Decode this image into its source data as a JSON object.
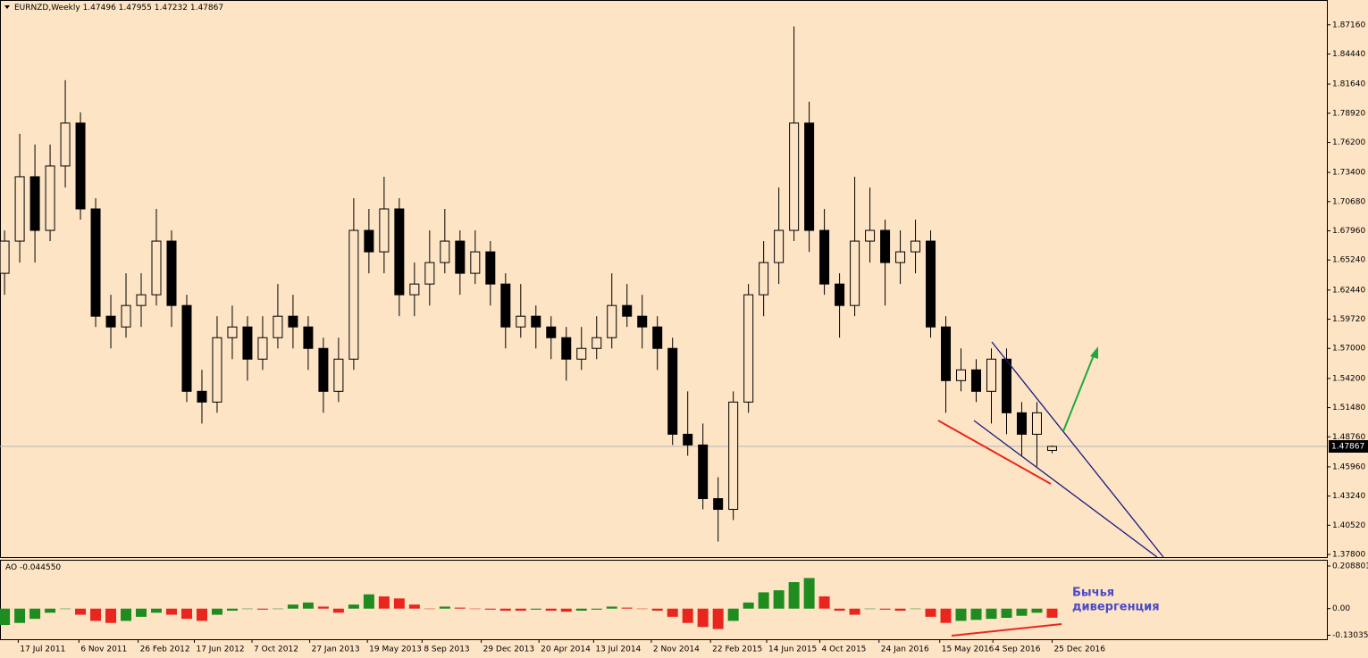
{
  "chart_data": [
    {
      "type": "candlestick",
      "title": "EURNZD,Weekly",
      "ohlc": [
        1.47496,
        1.47955,
        1.47232,
        1.47867
      ],
      "open": [
        1.64,
        1.67,
        1.73,
        1.68,
        1.74,
        1.78,
        1.7,
        1.6,
        1.59,
        1.61,
        1.62,
        1.67,
        1.61,
        1.53,
        1.52,
        1.58,
        1.59,
        1.56,
        1.58,
        1.6,
        1.59,
        1.57,
        1.53,
        1.56,
        1.68,
        1.66,
        1.7,
        1.62,
        1.63,
        1.65,
        1.67,
        1.64,
        1.66,
        1.63,
        1.59,
        1.6,
        1.59,
        1.58,
        1.56,
        1.57,
        1.58,
        1.61,
        1.6,
        1.59,
        1.57,
        1.49,
        1.48,
        1.43,
        1.42,
        1.52,
        1.62,
        1.65,
        1.68,
        1.78,
        1.68,
        1.63,
        1.61,
        1.67,
        1.68,
        1.65,
        1.66,
        1.67,
        1.59,
        1.54,
        1.55,
        1.53,
        1.56,
        1.51,
        1.49,
        1.47496
      ],
      "high": [
        1.68,
        1.77,
        1.76,
        1.76,
        1.82,
        1.79,
        1.71,
        1.62,
        1.64,
        1.64,
        1.7,
        1.68,
        1.62,
        1.55,
        1.6,
        1.61,
        1.6,
        1.6,
        1.63,
        1.62,
        1.6,
        1.58,
        1.58,
        1.71,
        1.7,
        1.73,
        1.71,
        1.65,
        1.68,
        1.7,
        1.68,
        1.68,
        1.67,
        1.64,
        1.63,
        1.61,
        1.6,
        1.59,
        1.59,
        1.6,
        1.64,
        1.63,
        1.62,
        1.6,
        1.58,
        1.53,
        1.5,
        1.45,
        1.53,
        1.63,
        1.67,
        1.72,
        1.87,
        1.8,
        1.7,
        1.64,
        1.73,
        1.72,
        1.69,
        1.68,
        1.69,
        1.68,
        1.6,
        1.57,
        1.56,
        1.57,
        1.57,
        1.52,
        1.52,
        1.47955
      ],
      "low": [
        1.62,
        1.65,
        1.65,
        1.67,
        1.72,
        1.69,
        1.59,
        1.57,
        1.58,
        1.59,
        1.61,
        1.59,
        1.52,
        1.5,
        1.51,
        1.56,
        1.54,
        1.55,
        1.57,
        1.57,
        1.55,
        1.51,
        1.52,
        1.55,
        1.64,
        1.64,
        1.6,
        1.6,
        1.61,
        1.64,
        1.62,
        1.63,
        1.61,
        1.57,
        1.58,
        1.57,
        1.56,
        1.54,
        1.55,
        1.56,
        1.57,
        1.59,
        1.57,
        1.55,
        1.48,
        1.47,
        1.42,
        1.39,
        1.41,
        1.51,
        1.6,
        1.63,
        1.67,
        1.66,
        1.62,
        1.58,
        1.6,
        1.65,
        1.61,
        1.63,
        1.64,
        1.58,
        1.51,
        1.53,
        1.52,
        1.5,
        1.49,
        1.47,
        1.46,
        1.47232
      ],
      "close": [
        1.67,
        1.73,
        1.68,
        1.74,
        1.78,
        1.7,
        1.6,
        1.59,
        1.61,
        1.62,
        1.67,
        1.61,
        1.53,
        1.52,
        1.58,
        1.59,
        1.56,
        1.58,
        1.6,
        1.59,
        1.57,
        1.53,
        1.56,
        1.68,
        1.66,
        1.7,
        1.62,
        1.63,
        1.65,
        1.67,
        1.64,
        1.66,
        1.63,
        1.59,
        1.6,
        1.59,
        1.58,
        1.56,
        1.57,
        1.58,
        1.61,
        1.6,
        1.59,
        1.57,
        1.49,
        1.48,
        1.43,
        1.42,
        1.52,
        1.62,
        1.65,
        1.68,
        1.78,
        1.68,
        1.63,
        1.61,
        1.67,
        1.68,
        1.65,
        1.66,
        1.67,
        1.59,
        1.54,
        1.55,
        1.53,
        1.56,
        1.51,
        1.49,
        1.51,
        1.47867
      ],
      "xlim": [
        -0.3,
        87.1
      ],
      "ylim": [
        1.3755,
        1.8947
      ],
      "yticks": [
        {
          "value": 1.8716,
          "label": "1.87160"
        },
        {
          "value": 1.8444,
          "label": "1.84440"
        },
        {
          "value": 1.8164,
          "label": "1.81640"
        },
        {
          "value": 1.7892,
          "label": "1.78920"
        },
        {
          "value": 1.762,
          "label": "1.76200"
        },
        {
          "value": 1.734,
          "label": "1.73400"
        },
        {
          "value": 1.7068,
          "label": "1.70680"
        },
        {
          "value": 1.6796,
          "label": "1.67960"
        },
        {
          "value": 1.6524,
          "label": "1.65240"
        },
        {
          "value": 1.6244,
          "label": "1.62440"
        },
        {
          "value": 1.5972,
          "label": "1.59720"
        },
        {
          "value": 1.57,
          "label": "1.57000"
        },
        {
          "value": 1.542,
          "label": "1.54200"
        },
        {
          "value": 1.5148,
          "label": "1.51480"
        },
        {
          "value": 1.4876,
          "label": "1.48760"
        },
        {
          "value": 1.4596,
          "label": "1.45960"
        },
        {
          "value": 1.4324,
          "label": "1.43240"
        },
        {
          "value": 1.4052,
          "label": "1.40520"
        },
        {
          "value": 1.378,
          "label": "1.37800"
        }
      ],
      "xticks": [
        {
          "value": 0.9,
          "label": "17 Jul 2011"
        },
        {
          "value": 4.9,
          "label": "6 Nov 2011"
        },
        {
          "value": 8.8,
          "label": "26 Feb 2012"
        },
        {
          "value": 12.5,
          "label": "17 Jun 2012"
        },
        {
          "value": 16.3,
          "label": "7 Oct 2012"
        },
        {
          "value": 20.1,
          "label": "27 Jan 2013"
        },
        {
          "value": 23.9,
          "label": "19 May 2013"
        },
        {
          "value": 27.5,
          "label": "8 Sep 2013"
        },
        {
          "value": 31.4,
          "label": "29 Dec 2013"
        },
        {
          "value": 35.2,
          "label": "20 Apr 2014"
        },
        {
          "value": 38.8,
          "label": "13 Jul 2014"
        },
        {
          "value": 42.6,
          "label": "2 Nov 2014"
        },
        {
          "value": 46.5,
          "label": "22 Feb 2015"
        },
        {
          "value": 50.2,
          "label": "14 Jun 2015"
        },
        {
          "value": 53.7,
          "label": "4 Oct 2015"
        },
        {
          "value": 57.6,
          "label": "24 Jan 2016"
        },
        {
          "value": 61.6,
          "label": "15 May 2016"
        },
        {
          "value": 65.1,
          "label": "4 Sep 2016"
        },
        {
          "value": 69.0,
          "label": "25 Dec 2016"
        }
      ],
      "annotations": [
        "Бычья",
        "дивергенция"
      ]
    },
    {
      "type": "bar",
      "title": "AO",
      "current": {
        "value": -0.04455,
        "label": "-0.044550"
      },
      "values": [
        -0.08,
        -0.07,
        -0.05,
        -0.02,
        0.0,
        -0.03,
        -0.06,
        -0.07,
        -0.06,
        -0.04,
        -0.02,
        -0.03,
        -0.05,
        -0.06,
        -0.03,
        -0.01,
        0.0,
        -0.005,
        0.0,
        0.02,
        0.03,
        0.01,
        -0.02,
        0.02,
        0.07,
        0.06,
        0.05,
        0.02,
        0.0,
        0.01,
        0.005,
        0.0,
        -0.005,
        -0.01,
        -0.01,
        -0.005,
        -0.01,
        -0.015,
        -0.01,
        -0.005,
        0.01,
        0.005,
        0.0,
        -0.01,
        -0.04,
        -0.07,
        -0.09,
        -0.1,
        -0.06,
        0.03,
        0.08,
        0.09,
        0.13,
        0.15,
        0.06,
        -0.01,
        -0.03,
        0.0,
        -0.005,
        -0.01,
        0.0,
        -0.04,
        -0.07,
        -0.06,
        -0.055,
        -0.05,
        -0.045,
        -0.035,
        -0.02,
        -0.04455
      ],
      "up_color": "#1f8c1f",
      "down_color": "#e8261e",
      "xlim": [
        -0.3,
        87.1
      ],
      "ylim": [
        -0.15,
        0.235
      ],
      "yticks": [
        0.208801,
        {
          "value": 0,
          "label": "0.00"
        },
        -0.130353
      ]
    }
  ]
}
